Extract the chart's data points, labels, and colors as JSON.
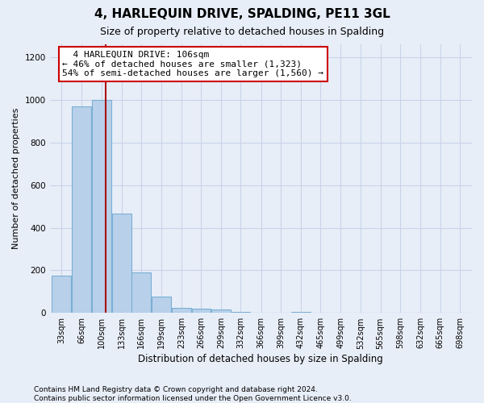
{
  "title": "4, HARLEQUIN DRIVE, SPALDING, PE11 3GL",
  "subtitle": "Size of property relative to detached houses in Spalding",
  "xlabel": "Distribution of detached houses by size in Spalding",
  "ylabel": "Number of detached properties",
  "footnote1": "Contains HM Land Registry data © Crown copyright and database right 2024.",
  "footnote2": "Contains public sector information licensed under the Open Government Licence v3.0.",
  "bar_labels": [
    "33sqm",
    "66sqm",
    "100sqm",
    "133sqm",
    "166sqm",
    "199sqm",
    "233sqm",
    "266sqm",
    "299sqm",
    "332sqm",
    "366sqm",
    "399sqm",
    "432sqm",
    "465sqm",
    "499sqm",
    "532sqm",
    "565sqm",
    "598sqm",
    "632sqm",
    "665sqm",
    "698sqm"
  ],
  "bar_values": [
    175,
    970,
    1000,
    465,
    190,
    75,
    25,
    20,
    15,
    5,
    0,
    0,
    5,
    0,
    0,
    0,
    0,
    0,
    0,
    0,
    0
  ],
  "bar_color": "#b8d0ea",
  "bar_edge_color": "#7aafd4",
  "annotation_line_color": "#aa1111",
  "annotation_box_text": "  4 HARLEQUIN DRIVE: 106sqm\n← 46% of detached houses are smaller (1,323)\n54% of semi-detached houses are larger (1,560) →",
  "annotation_box_color": "#ffffff",
  "annotation_box_edge_color": "#cc0000",
  "ylim": [
    0,
    1260
  ],
  "yticks": [
    0,
    200,
    400,
    600,
    800,
    1000,
    1200
  ],
  "grid_color": "#c8d4e8",
  "background_color": "#e8eef8",
  "bin_width": 33,
  "title_fontsize": 11,
  "subtitle_fontsize": 9,
  "ylabel_fontsize": 8,
  "xlabel_fontsize": 8.5,
  "tick_fontsize": 7,
  "annot_fontsize": 8,
  "footnote_fontsize": 6.5
}
